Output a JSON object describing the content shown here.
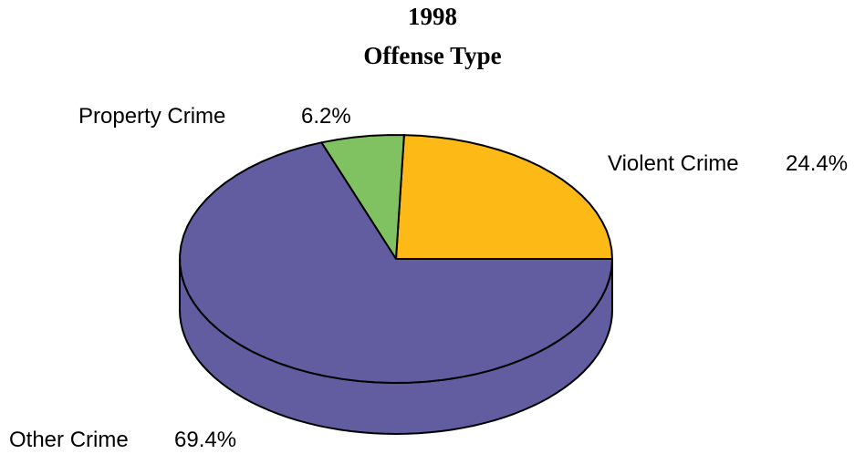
{
  "chart_data": {
    "type": "pie",
    "title": "1998",
    "subtitle": "Offense Type",
    "style": "3d",
    "slices": [
      {
        "label": "Violent Crime",
        "value": 24.4,
        "value_label": "24.4%",
        "color": "#FDBA16"
      },
      {
        "label": "Other Crime",
        "value": 69.4,
        "value_label": "69.4%",
        "color": "#625DA1"
      },
      {
        "label": "Property Crime",
        "value": 6.2,
        "value_label": "6.2%",
        "color": "#80C262"
      }
    ]
  }
}
